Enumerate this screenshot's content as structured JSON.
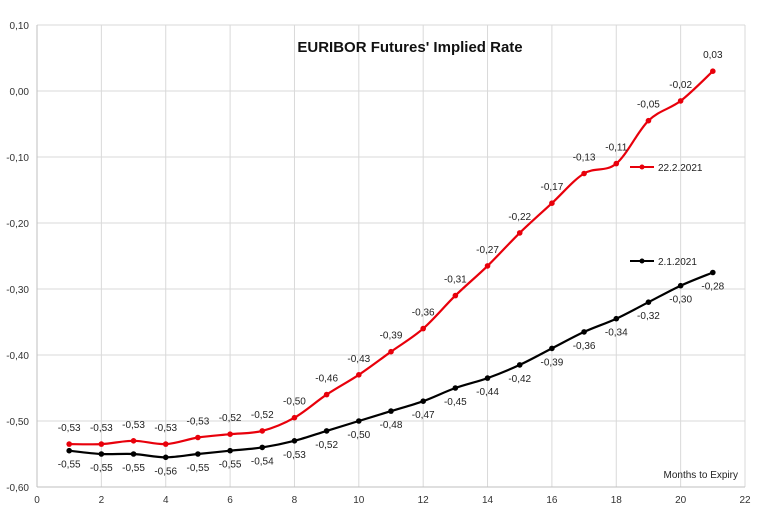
{
  "chart_data": {
    "type": "line",
    "title": "EURIBOR Futures' Implied Rate",
    "xlabel": "Months to Expiry",
    "ylabel": "",
    "xlim": [
      0,
      22
    ],
    "ylim": [
      -0.6,
      0.1
    ],
    "x_ticks": [
      "0",
      "2",
      "4",
      "6",
      "8",
      "10",
      "12",
      "14",
      "16",
      "18",
      "20",
      "22"
    ],
    "y_ticks": [
      "0,10",
      "0,00",
      "-0,10",
      "-0,20",
      "-0,30",
      "-0,40",
      "-0,50",
      "-0,60"
    ],
    "grid": true,
    "series": [
      {
        "name": "22.2.2021",
        "color": "#e8000b",
        "x": [
          1,
          2,
          3,
          4,
          5,
          6,
          7,
          8,
          9,
          10,
          11,
          12,
          13,
          14,
          15,
          16,
          17,
          18,
          19,
          20,
          21
        ],
        "values": [
          -0.535,
          -0.535,
          -0.53,
          -0.535,
          -0.525,
          -0.52,
          -0.515,
          -0.495,
          -0.46,
          -0.43,
          -0.395,
          -0.36,
          -0.31,
          -0.265,
          -0.215,
          -0.17,
          -0.125,
          -0.11,
          -0.045,
          -0.015,
          0.03
        ],
        "labels": [
          "-0,53",
          "-0,53",
          "-0,53",
          "-0,53",
          "-0,53",
          "-0,52",
          "-0,52",
          "-0,50",
          "-0,46",
          "-0,43",
          "-0,39",
          "-0,36",
          "-0,31",
          "-0,27",
          "-0,22",
          "-0,17",
          "-0,13",
          "-0,11",
          "-0,05",
          "-0,02",
          "0,03"
        ]
      },
      {
        "name": "2.1.2021",
        "color": "#000000",
        "x": [
          1,
          2,
          3,
          4,
          5,
          6,
          7,
          8,
          9,
          10,
          11,
          12,
          13,
          14,
          15,
          16,
          17,
          18,
          19,
          20,
          21
        ],
        "values": [
          -0.545,
          -0.55,
          -0.55,
          -0.555,
          -0.55,
          -0.545,
          -0.54,
          -0.53,
          -0.515,
          -0.5,
          -0.485,
          -0.47,
          -0.45,
          -0.435,
          -0.415,
          -0.39,
          -0.365,
          -0.345,
          -0.32,
          -0.295,
          -0.275
        ],
        "labels": [
          "-0,55",
          "-0,55",
          "-0,55",
          "-0,56",
          "-0,55",
          "-0,55",
          "-0,54",
          "-0,53",
          "-0,52",
          "-0,50",
          "-0,48",
          "-0,47",
          "-0,45",
          "-0,44",
          "-0,42",
          "-0,39",
          "-0,36",
          "-0,34",
          "-0,32",
          "-0,30",
          "-0,28"
        ]
      }
    ],
    "legend": "right-inside"
  }
}
